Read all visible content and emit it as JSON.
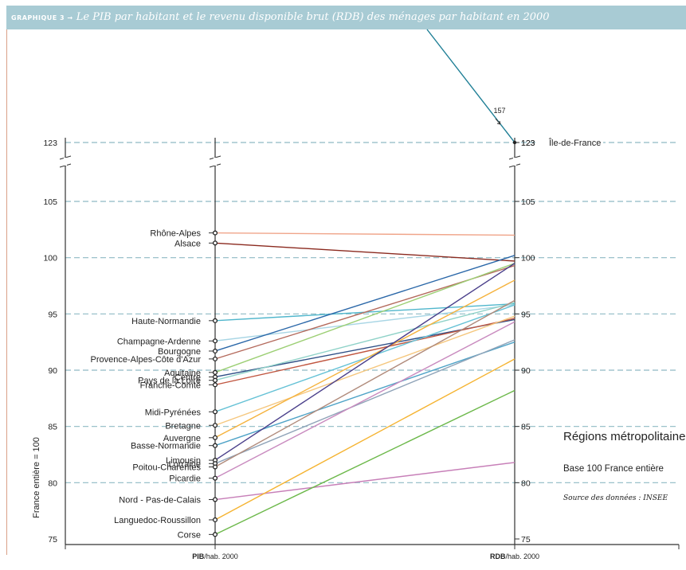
{
  "header": {
    "prefix": "GRAPHIQUE 3 →",
    "title": "Le PIB par habitant et le revenu disponible brut (RDB) des ménages par habitant en 2000"
  },
  "notes": {
    "regions": "Régions métropolitaines",
    "base": "Base 100 France entière",
    "source": "Source des données : INSEE"
  },
  "colors": {
    "header": "#a8cbd4",
    "gridline": "#8fb9c4",
    "frame": "#d9a087"
  },
  "chart_data": {
    "type": "line",
    "style": "slope",
    "ylabel": "France entière = 100",
    "axes": [
      {
        "label_bold": "PIB",
        "label_rest": "/hab. 2000"
      },
      {
        "label_bold": "RDB",
        "label_rest": "/hab. 2000"
      }
    ],
    "y_ticks": [
      75,
      80,
      85,
      90,
      95,
      100,
      105,
      123
    ],
    "ylim": [
      75,
      123
    ],
    "axis_break": [
      105,
      123
    ],
    "grid": true,
    "outlier_annotation": {
      "region": "Île-de-France",
      "pib": 157,
      "rdb": 123,
      "label": "157"
    },
    "series": [
      {
        "name": "Île-de-France",
        "pib": 157,
        "rdb": 123,
        "color": "#1f7f96"
      },
      {
        "name": "Rhône-Alpes",
        "pib": 102.2,
        "rdb": 102,
        "color": "#f0a58a"
      },
      {
        "name": "Alsace",
        "pib": 101.3,
        "rdb": 99.7,
        "color": "#8b2a1f"
      },
      {
        "name": "Haute-Normandie",
        "pib": 94.4,
        "rdb": 95.9,
        "color": "#4fb6cc"
      },
      {
        "name": "Champagne-Ardenne",
        "pib": 92.6,
        "rdb": 95.8,
        "color": "#a9d6e5"
      },
      {
        "name": "Bourgogne",
        "pib": 91.7,
        "rdb": 100.2,
        "color": "#2a67a8"
      },
      {
        "name": "Provence-Alpes-Côte d'Azur",
        "pib": 91,
        "rdb": 99.3,
        "color": "#b46a5c"
      },
      {
        "name": "Aquitaine",
        "pib": 89.8,
        "rdb": 99.5,
        "color": "#9ccf74"
      },
      {
        "name": "Centre",
        "pib": 89.4,
        "rdb": 94.5,
        "color": "#2f4f86"
      },
      {
        "name": "Pays de la Loire",
        "pib": 89.1,
        "rdb": 96,
        "color": "#8fd2c8"
      },
      {
        "name": "Franche-Comté",
        "pib": 88.7,
        "rdb": 94.6,
        "color": "#c0553f"
      },
      {
        "name": "Midi-Pyrénées",
        "pib": 86.3,
        "rdb": 95.8,
        "color": "#66c2d6"
      },
      {
        "name": "Bretagne",
        "pib": 85.1,
        "rdb": 94.8,
        "color": "#f5c77e"
      },
      {
        "name": "Auvergne",
        "pib": 84,
        "rdb": 98,
        "color": "#f5b23c"
      },
      {
        "name": "Basse-Normandie",
        "pib": 83.3,
        "rdb": 92.5,
        "color": "#4fa3c7"
      },
      {
        "name": "Limousin",
        "pib": 82,
        "rdb": 99.5,
        "color": "#4a3f8a"
      },
      {
        "name": "Lorraine",
        "pib": 81.7,
        "rdb": 92.7,
        "color": "#8fa3b8"
      },
      {
        "name": "Poitou-Charentes",
        "pib": 81.4,
        "rdb": 96.2,
        "color": "#b08a7a"
      },
      {
        "name": "Picardie",
        "pib": 80.4,
        "rdb": 94.3,
        "color": "#c98bbf"
      },
      {
        "name": "Nord - Pas-de-Calais",
        "pib": 78.5,
        "rdb": 81.8,
        "color": "#c77fb8"
      },
      {
        "name": "Languedoc-Roussillon",
        "pib": 76.7,
        "rdb": 91,
        "color": "#f5b330"
      },
      {
        "name": "Corse",
        "pib": 75.4,
        "rdb": 88.2,
        "color": "#6cb84a"
      }
    ]
  }
}
